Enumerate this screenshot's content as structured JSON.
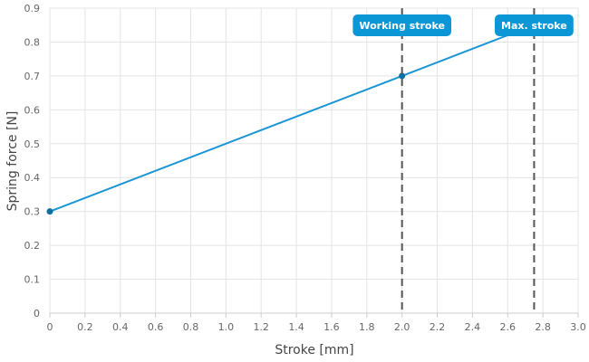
{
  "chart_data": {
    "type": "line",
    "xlabel": "Stroke [mm]",
    "ylabel": "Spring force [N]",
    "xlim": [
      0,
      3.0
    ],
    "ylim": [
      0,
      0.9
    ],
    "x_ticks": [
      "0",
      "0.2",
      "0.4",
      "0.6",
      "0.8",
      "1.0",
      "1.2",
      "1.4",
      "1.6",
      "1.8",
      "2.0",
      "2.2",
      "2.4",
      "2.6",
      "2.8",
      "3.0"
    ],
    "y_ticks": [
      "0",
      "0.1",
      "0.2",
      "0.3",
      "0.4",
      "0.5",
      "0.6",
      "0.7",
      "0.8",
      "0.9"
    ],
    "grid": true,
    "series": [
      {
        "color": "#1a96d4",
        "points": [
          {
            "x": 0,
            "y": 0.3
          },
          {
            "x": 2.0,
            "y": 0.7
          },
          {
            "x": 2.75,
            "y": 0.85
          }
        ],
        "markers": [
          {
            "x": 0,
            "y": 0.3
          },
          {
            "x": 2.0,
            "y": 0.7
          }
        ]
      }
    ],
    "annotations": [
      {
        "label": "Working stroke",
        "x": 2.0
      },
      {
        "label": "Max. stroke",
        "x": 2.75
      }
    ],
    "colors": {
      "line": "#1a96d4",
      "marker": "#0e6f9e",
      "flag": "#0b96d6",
      "vline": "#555555",
      "grid": "#e4e4e4"
    }
  }
}
